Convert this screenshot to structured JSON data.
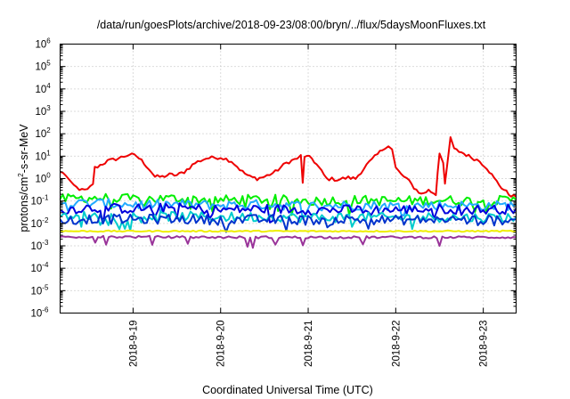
{
  "chart_data": {
    "type": "line",
    "title": "/data/run/goesPlots/archive/2018-09-23/08:00/bryn/../flux/5daysMoonFluxes.txt",
    "xlabel": "Coordinated Universal Time (UTC)",
    "ylabel": {
      "base": "protons/cm",
      "sup": "2",
      "rest": "-s-sr-MeV"
    },
    "yscale": "log",
    "ylim_exp": [
      -6,
      6
    ],
    "xlim": [
      "2018-09-18 04:00",
      "2018-09-23 09:00"
    ],
    "x_ticks": [
      "2018-9-19",
      "2018-9-20",
      "2018-9-21",
      "2018-9-22",
      "2018-9-23"
    ],
    "y_ticks": {
      "base": "10",
      "exponents": [
        "6",
        "5",
        "4",
        "3",
        "2",
        "1",
        "0",
        "-1",
        "-2",
        "-3",
        "-4",
        "-5",
        "-6"
      ]
    },
    "grid": true,
    "series": [
      {
        "color": "#ee0000",
        "points": [
          [
            "2018-09-18 04:00",
            2.0
          ],
          [
            "2018-09-18 05:30",
            1.5
          ],
          [
            "2018-09-18 07:00",
            0.6
          ],
          [
            "2018-09-18 08:30",
            0.4
          ],
          [
            "2018-09-18 10:00",
            0.3
          ],
          [
            "2018-09-18 11:30",
            0.3
          ],
          [
            "2018-09-18 13:00",
            0.6
          ],
          [
            "2018-09-18 13:30",
            3.0
          ],
          [
            "2018-09-18 15:00",
            4.0
          ],
          [
            "2018-09-18 17:00",
            6.0
          ],
          [
            "2018-09-18 20:00",
            8.0
          ],
          [
            "2018-09-18 23:00",
            12
          ],
          [
            "2018-09-19 01:00",
            10
          ],
          [
            "2018-09-19 03:00",
            5.0
          ],
          [
            "2018-09-19 05:00",
            2.0
          ],
          [
            "2018-09-19 06:00",
            1.2
          ],
          [
            "2018-09-19 08:00",
            1.2
          ],
          [
            "2018-09-19 10:00",
            1.5
          ],
          [
            "2018-09-19 12:00",
            1.4
          ],
          [
            "2018-09-19 14:00",
            2.0
          ],
          [
            "2018-09-19 17:00",
            5.0
          ],
          [
            "2018-09-19 20:00",
            8.0
          ],
          [
            "2018-09-20 00:00",
            9.0
          ],
          [
            "2018-09-20 03:00",
            6.0
          ],
          [
            "2018-09-20 06:00",
            2.0
          ],
          [
            "2018-09-20 08:00",
            1.2
          ],
          [
            "2018-09-20 10:00",
            1.0
          ],
          [
            "2018-09-20 12:00",
            1.2
          ],
          [
            "2018-09-20 15:00",
            2.0
          ],
          [
            "2018-09-20 18:00",
            5.0
          ],
          [
            "2018-09-20 21:00",
            8.0
          ],
          [
            "2018-09-20 22:00",
            10
          ],
          [
            "2018-09-20 22:30",
            0.6
          ],
          [
            "2018-09-20 23:00",
            10
          ],
          [
            "2018-09-21 01:00",
            8.0
          ],
          [
            "2018-09-21 03:00",
            3.0
          ],
          [
            "2018-09-21 05:00",
            1.0
          ],
          [
            "2018-09-21 08:00",
            0.9
          ],
          [
            "2018-09-21 11:00",
            1.1
          ],
          [
            "2018-09-21 13:00",
            1.0
          ],
          [
            "2018-09-21 16:00",
            4.0
          ],
          [
            "2018-09-21 19:00",
            12
          ],
          [
            "2018-09-21 21:00",
            25
          ],
          [
            "2018-09-21 22:00",
            30
          ],
          [
            "2018-09-21 23:00",
            20
          ],
          [
            "2018-09-22 00:00",
            3.0
          ],
          [
            "2018-09-22 01:30",
            1.5
          ],
          [
            "2018-09-22 03:00",
            1.0
          ],
          [
            "2018-09-22 05:00",
            0.4
          ],
          [
            "2018-09-22 07:00",
            0.2
          ],
          [
            "2018-09-22 09:00",
            0.3
          ],
          [
            "2018-09-22 11:00",
            0.2
          ],
          [
            "2018-09-22 11:30",
            2.0
          ],
          [
            "2018-09-22 12:00",
            15
          ],
          [
            "2018-09-22 13:00",
            5.0
          ],
          [
            "2018-09-22 13:30",
            0.5
          ],
          [
            "2018-09-22 15:00",
            70
          ],
          [
            "2018-09-22 16:00",
            20
          ],
          [
            "2018-09-22 18:00",
            15
          ],
          [
            "2018-09-22 20:00",
            10
          ],
          [
            "2018-09-22 23:00",
            6.0
          ],
          [
            "2018-09-23 01:00",
            3.0
          ],
          [
            "2018-09-23 03:00",
            1.0
          ],
          [
            "2018-09-23 05:00",
            0.4
          ],
          [
            "2018-09-23 07:00",
            0.2
          ],
          [
            "2018-09-23 09:00",
            0.15
          ]
        ]
      },
      {
        "color": "#00ee00",
        "points": [
          [
            "2018-09-18 04:00",
            0.12
          ],
          [
            "2018-09-18 12:00",
            0.14
          ],
          [
            "2018-09-19 00:00",
            0.12
          ],
          [
            "2018-09-19 12:00",
            0.13
          ],
          [
            "2018-09-20 00:00",
            0.11
          ],
          [
            "2018-09-20 12:00",
            0.12
          ],
          [
            "2018-09-21 00:00",
            0.1
          ],
          [
            "2018-09-21 12:00",
            0.11
          ],
          [
            "2018-09-22 00:00",
            0.1
          ],
          [
            "2018-09-22 12:00",
            0.11
          ],
          [
            "2018-09-23 00:00",
            0.1
          ],
          [
            "2018-09-23 09:00",
            0.11
          ]
        ]
      },
      {
        "color": "#22aaff",
        "points": [
          [
            "2018-09-18 04:00",
            0.07
          ],
          [
            "2018-09-18 12:00",
            0.08
          ],
          [
            "2018-09-19 00:00",
            0.07
          ],
          [
            "2018-09-19 12:00",
            0.07
          ],
          [
            "2018-09-20 00:00",
            0.065
          ],
          [
            "2018-09-20 12:00",
            0.07
          ],
          [
            "2018-09-21 00:00",
            0.06
          ],
          [
            "2018-09-21 12:00",
            0.065
          ],
          [
            "2018-09-22 00:00",
            0.06
          ],
          [
            "2018-09-22 12:00",
            0.065
          ],
          [
            "2018-09-23 00:00",
            0.06
          ],
          [
            "2018-09-23 09:00",
            0.065
          ]
        ]
      },
      {
        "color": "#0000dd",
        "points": [
          [
            "2018-09-18 04:00",
            0.04
          ],
          [
            "2018-09-18 12:00",
            0.05
          ],
          [
            "2018-09-19 00:00",
            0.045
          ],
          [
            "2018-09-19 12:00",
            0.05
          ],
          [
            "2018-09-20 00:00",
            0.04
          ],
          [
            "2018-09-20 12:00",
            0.045
          ],
          [
            "2018-09-21 00:00",
            0.04
          ],
          [
            "2018-09-21 12:00",
            0.04
          ],
          [
            "2018-09-22 00:00",
            0.04
          ],
          [
            "2018-09-22 12:00",
            0.045
          ],
          [
            "2018-09-23 00:00",
            0.04
          ],
          [
            "2018-09-23 09:00",
            0.045
          ]
        ]
      },
      {
        "color": "#00cccc",
        "points": [
          [
            "2018-09-18 04:00",
            0.02
          ],
          [
            "2018-09-18 12:00",
            0.022
          ],
          [
            "2018-09-19 00:00",
            0.02
          ],
          [
            "2018-09-19 12:00",
            0.021
          ],
          [
            "2018-09-20 00:00",
            0.019
          ],
          [
            "2018-09-20 12:00",
            0.02
          ],
          [
            "2018-09-21 00:00",
            0.018
          ],
          [
            "2018-09-21 12:00",
            0.019
          ],
          [
            "2018-09-22 00:00",
            0.018
          ],
          [
            "2018-09-22 12:00",
            0.019
          ],
          [
            "2018-09-23 00:00",
            0.018
          ],
          [
            "2018-09-23 09:00",
            0.019
          ]
        ]
      },
      {
        "color": "#0033cc",
        "points": [
          [
            "2018-09-18 04:00",
            0.015
          ],
          [
            "2018-09-18 12:00",
            0.016
          ],
          [
            "2018-09-19 00:00",
            0.015
          ],
          [
            "2018-09-19 12:00",
            0.016
          ],
          [
            "2018-09-20 00:00",
            0.014
          ],
          [
            "2018-09-20 12:00",
            0.015
          ],
          [
            "2018-09-21 00:00",
            0.014
          ],
          [
            "2018-09-21 12:00",
            0.015
          ],
          [
            "2018-09-22 00:00",
            0.014
          ],
          [
            "2018-09-22 12:00",
            0.015
          ],
          [
            "2018-09-23 00:00",
            0.014
          ],
          [
            "2018-09-23 09:00",
            0.015
          ]
        ]
      },
      {
        "color": "#eeee00",
        "points": [
          [
            "2018-09-18 04:00",
            0.0045
          ],
          [
            "2018-09-19 00:00",
            0.0045
          ],
          [
            "2018-09-20 00:00",
            0.0045
          ],
          [
            "2018-09-21 00:00",
            0.0045
          ],
          [
            "2018-09-22 00:00",
            0.0045
          ],
          [
            "2018-09-23 00:00",
            0.0045
          ],
          [
            "2018-09-23 09:00",
            0.0045
          ]
        ]
      },
      {
        "color": "#993399",
        "points": [
          [
            "2018-09-18 04:00",
            0.0025
          ],
          [
            "2018-09-19 00:00",
            0.0025
          ],
          [
            "2018-09-20 00:00",
            0.0024
          ],
          [
            "2018-09-20 14:00",
            0.0024
          ],
          [
            "2018-09-20 15:00",
            0.0012
          ],
          [
            "2018-09-20 16:00",
            0.0024
          ],
          [
            "2018-09-21 00:00",
            0.0024
          ],
          [
            "2018-09-21 14:00",
            0.0024
          ],
          [
            "2018-09-21 15:00",
            0.0012
          ],
          [
            "2018-09-21 16:00",
            0.0024
          ],
          [
            "2018-09-22 00:00",
            0.0024
          ],
          [
            "2018-09-23 00:00",
            0.0024
          ],
          [
            "2018-09-23 09:00",
            0.0024
          ]
        ]
      }
    ]
  }
}
